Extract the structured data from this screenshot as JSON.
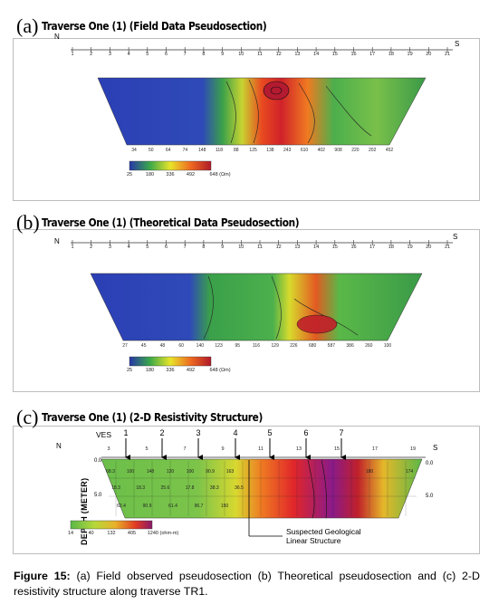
{
  "panels": [
    {
      "letter": "(a)",
      "title": "Traverse One (1) (Field Data Pseudosection)",
      "north": "N",
      "south": "S",
      "ticks": [
        "1",
        "2",
        "3",
        "4",
        "5",
        "6",
        "7",
        "8",
        "9",
        "10",
        "11",
        "12",
        "13",
        "14",
        "15",
        "16",
        "17",
        "18",
        "19",
        "20",
        "21"
      ],
      "row1": [
        "29",
        "20",
        "17",
        "20",
        "17",
        "29",
        "30",
        "33",
        "",
        "",
        "",
        "",
        "",
        "",
        "",
        "17",
        "78",
        "",
        "",
        "95"
      ],
      "bottom_row": [
        "34",
        "50",
        "64",
        "74",
        "148",
        "118",
        "88",
        "125",
        "138",
        "243",
        "610",
        "402",
        "908",
        "220",
        "202",
        "452"
      ],
      "scale": [
        "25",
        "180",
        "336",
        "492",
        "648 (Ωm)"
      ]
    },
    {
      "letter": "(b)",
      "title": "Traverse One (1) (Theoretical Data Pseudosection)",
      "north": "N",
      "south": "S",
      "ticks": [
        "1",
        "2",
        "3",
        "4",
        "5",
        "6",
        "7",
        "8",
        "9",
        "10",
        "11",
        "12",
        "13",
        "14",
        "15",
        "16",
        "17",
        "18",
        "19",
        "20",
        "21"
      ],
      "row1": [
        "25",
        "14",
        "33",
        "53",
        "57",
        "56",
        "53",
        "75",
        "140",
        "102",
        "99",
        "147",
        "153",
        "82",
        "89",
        "96",
        "160",
        "123",
        "115",
        "162"
      ],
      "bottom_row": [
        "27",
        "45",
        "48",
        "60",
        "140",
        "123",
        "95",
        "116",
        "129",
        "226",
        "680",
        "587",
        "386",
        "260",
        "100"
      ],
      "scale": [
        "25",
        "180",
        "336",
        "492",
        "648 (Ωm)"
      ]
    },
    {
      "letter": "(c)",
      "title": "Traverse One (1) (2-D Resistivity Structure)",
      "north": "N",
      "south": "S",
      "ves_label": "VES",
      "ves_numbers": [
        "1",
        "2",
        "3",
        "4",
        "5",
        "6",
        "7"
      ],
      "ticks": [
        "3",
        "5",
        "7",
        "9",
        "11",
        "13",
        "15",
        "17",
        "19"
      ],
      "depth_axis": "DEPTH (METER)",
      "depth_ticks": [
        "0.0",
        "5.0"
      ],
      "cells_row1": [
        "68.3",
        "100",
        "148",
        "120",
        "100",
        "90.9",
        "163",
        "",
        "",
        "",
        "",
        "",
        "",
        "180",
        "",
        "174"
      ],
      "cells_row2": [
        "18.3",
        "18.3",
        "25.6",
        "17.8",
        "38.3",
        "36.5"
      ],
      "cells_row3": [
        "62.4",
        "90.9",
        "61.4",
        "96.7",
        "150"
      ],
      "scale": [
        "14",
        "40",
        "132",
        "405",
        "1240 (ohm-m)"
      ],
      "annotation": "Suspected Geological\nLinear Structure"
    }
  ],
  "caption": {
    "label": "Figure 15:",
    "text": " (a) Field observed pseudosection (b) Theoretical pseudosection and (c) 2-D resistivity structure along traverse TR1."
  }
}
